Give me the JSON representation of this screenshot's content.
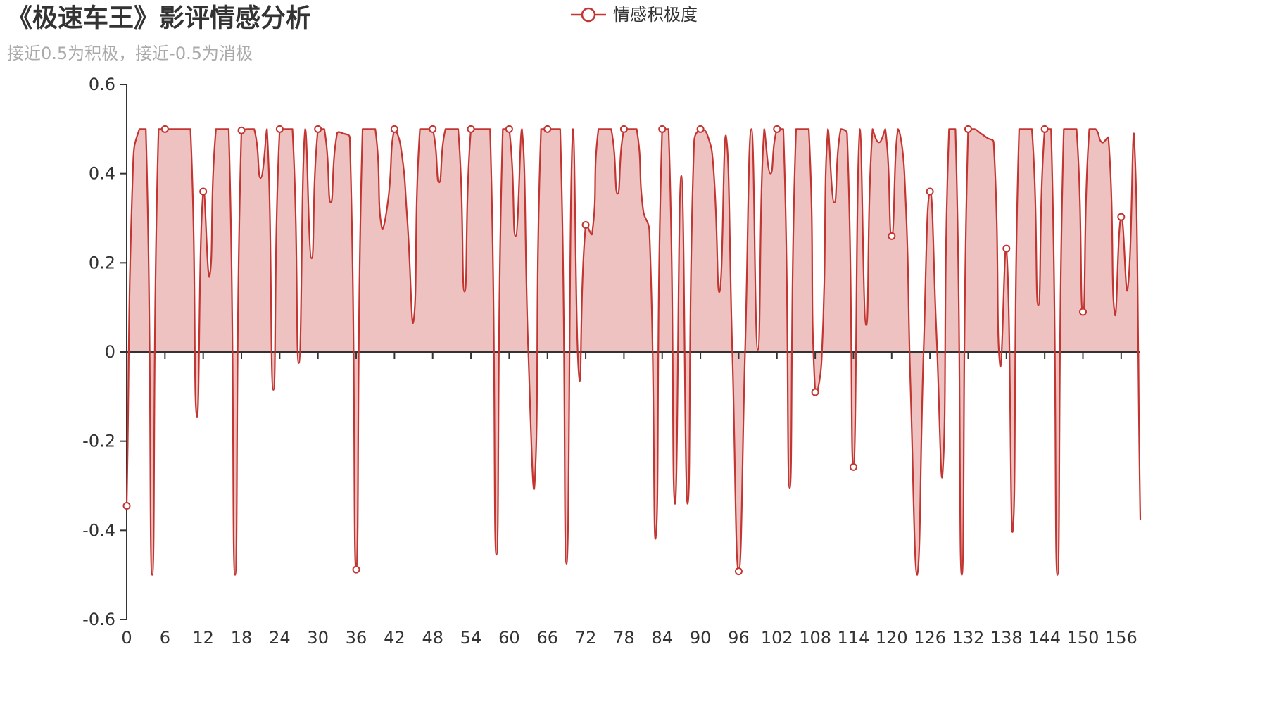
{
  "chart_data": {
    "type": "line",
    "title": "《极速车王》影评情感分析",
    "subtitle": "接近0.5为积极，接近-0.5为消极",
    "x": [
      0,
      1,
      2,
      3,
      4,
      5,
      6,
      7,
      8,
      9,
      10,
      11,
      12,
      13,
      14,
      15,
      16,
      17,
      18,
      19,
      20,
      21,
      22,
      23,
      24,
      25,
      26,
      27,
      28,
      29,
      30,
      31,
      32,
      33,
      34,
      35,
      36,
      37,
      38,
      39,
      40,
      41,
      42,
      43,
      44,
      45,
      46,
      47,
      48,
      49,
      50,
      51,
      52,
      53,
      54,
      55,
      56,
      57,
      58,
      59,
      60,
      61,
      62,
      63,
      64,
      65,
      66,
      67,
      68,
      69,
      70,
      71,
      72,
      73,
      74,
      75,
      76,
      77,
      78,
      79,
      80,
      81,
      82,
      83,
      84,
      85,
      86,
      87,
      88,
      89,
      90,
      91,
      92,
      93,
      94,
      95,
      96,
      97,
      98,
      99,
      100,
      101,
      102,
      103,
      104,
      105,
      106,
      107,
      108,
      109,
      110,
      111,
      112,
      113,
      114,
      115,
      116,
      117,
      118,
      119,
      120,
      121,
      122,
      123,
      124,
      125,
      126,
      127,
      128,
      129,
      130,
      131,
      132,
      133,
      134,
      135,
      136,
      137,
      138,
      139,
      140,
      141,
      142,
      143,
      144,
      145,
      146,
      147,
      148,
      149,
      150,
      151,
      152,
      153,
      154,
      155,
      156,
      157,
      158,
      159
    ],
    "x_tick_labels": [
      "0",
      "6",
      "12",
      "18",
      "24",
      "30",
      "36",
      "42",
      "48",
      "54",
      "60",
      "66",
      "72",
      "78",
      "84",
      "90",
      "96",
      "102",
      "108",
      "114",
      "120",
      "126",
      "132",
      "138",
      "144",
      "150",
      "156"
    ],
    "y_tick_labels": [
      "0.6",
      "0.4",
      "0.2",
      "0",
      "-0.2",
      "-0.4",
      "-0.6"
    ],
    "ylim": [
      -0.6,
      0.6
    ],
    "series": [
      {
        "name": "情感积极度",
        "smooth": true,
        "area": true,
        "symbol": "emptyCircle",
        "values": [
          -0.345,
          0.42,
          0.5,
          0.5,
          -0.5,
          0.5,
          0.5,
          0.5,
          0.5,
          0.5,
          0.5,
          -0.145,
          0.36,
          0.17,
          0.5,
          0.5,
          0.5,
          -0.5,
          0.497,
          0.5,
          0.5,
          0.39,
          0.5,
          -0.085,
          0.5,
          0.5,
          0.5,
          -0.025,
          0.5,
          0.21,
          0.5,
          0.5,
          0.335,
          0.49,
          0.49,
          0.48,
          -0.488,
          0.5,
          0.5,
          0.5,
          0.28,
          0.34,
          0.5,
          0.46,
          0.3,
          0.07,
          0.5,
          0.5,
          0.5,
          0.38,
          0.5,
          0.5,
          0.5,
          0.135,
          0.5,
          0.5,
          0.5,
          0.5,
          -0.455,
          0.5,
          0.5,
          0.26,
          0.5,
          0.0,
          -0.295,
          0.5,
          0.5,
          0.5,
          0.5,
          -0.475,
          0.5,
          -0.06,
          0.285,
          0.265,
          0.5,
          0.5,
          0.5,
          0.355,
          0.5,
          0.5,
          0.5,
          0.32,
          0.27,
          -0.415,
          0.5,
          0.5,
          -0.34,
          0.395,
          -0.34,
          0.47,
          0.5,
          0.49,
          0.42,
          0.135,
          0.485,
          0.0,
          -0.492,
          0.0,
          0.5,
          0.005,
          0.5,
          0.4,
          0.5,
          0.5,
          -0.305,
          0.5,
          0.5,
          0.5,
          -0.09,
          -0.02,
          0.5,
          0.335,
          0.5,
          0.49,
          -0.258,
          0.5,
          0.06,
          0.5,
          0.47,
          0.5,
          0.26,
          0.5,
          0.4,
          -0.1,
          -0.5,
          0.0,
          0.36,
          0.05,
          -0.27,
          0.5,
          0.5,
          -0.5,
          0.5,
          0.5,
          0.49,
          0.48,
          0.47,
          -0.03,
          0.232,
          -0.4,
          0.5,
          0.5,
          0.5,
          0.105,
          0.5,
          0.5,
          -0.5,
          0.5,
          0.5,
          0.5,
          0.09,
          0.5,
          0.5,
          0.47,
          0.48,
          0.085,
          0.303,
          0.14,
          0.49,
          -0.375
        ]
      }
    ],
    "legend_position": "top-center",
    "grid": false,
    "colors": {
      "series": "#c23531",
      "axis": "#333333",
      "title": "#333333",
      "subtitle": "#aaaaaa"
    }
  }
}
